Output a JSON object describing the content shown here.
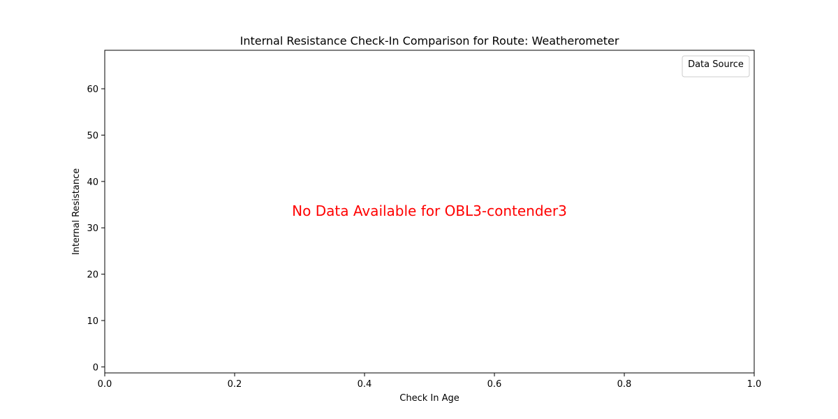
{
  "chart_data": {
    "type": "line",
    "title": "Internal Resistance Check-In Comparison for Route: Weatherometer",
    "xlabel": "Check In Age",
    "ylabel": "Internal Resistance",
    "xlim": [
      0.0,
      1.0
    ],
    "ylim": [
      -1.3,
      68.3
    ],
    "x_ticks": [
      "0.0",
      "0.2",
      "0.4",
      "0.6",
      "0.8",
      "1.0"
    ],
    "x_tick_values": [
      0.0,
      0.2,
      0.4,
      0.6,
      0.8,
      1.0
    ],
    "y_ticks": [
      "0",
      "10",
      "20",
      "30",
      "40",
      "50",
      "60"
    ],
    "y_tick_values": [
      0,
      10,
      20,
      30,
      40,
      50,
      60
    ],
    "grid": false,
    "legend": {
      "title": "Data Source",
      "placement": "top-right",
      "entries": []
    },
    "series": [],
    "annotation": {
      "text": "No Data Available for OBL3-contender3",
      "color": "#ff0000"
    }
  }
}
